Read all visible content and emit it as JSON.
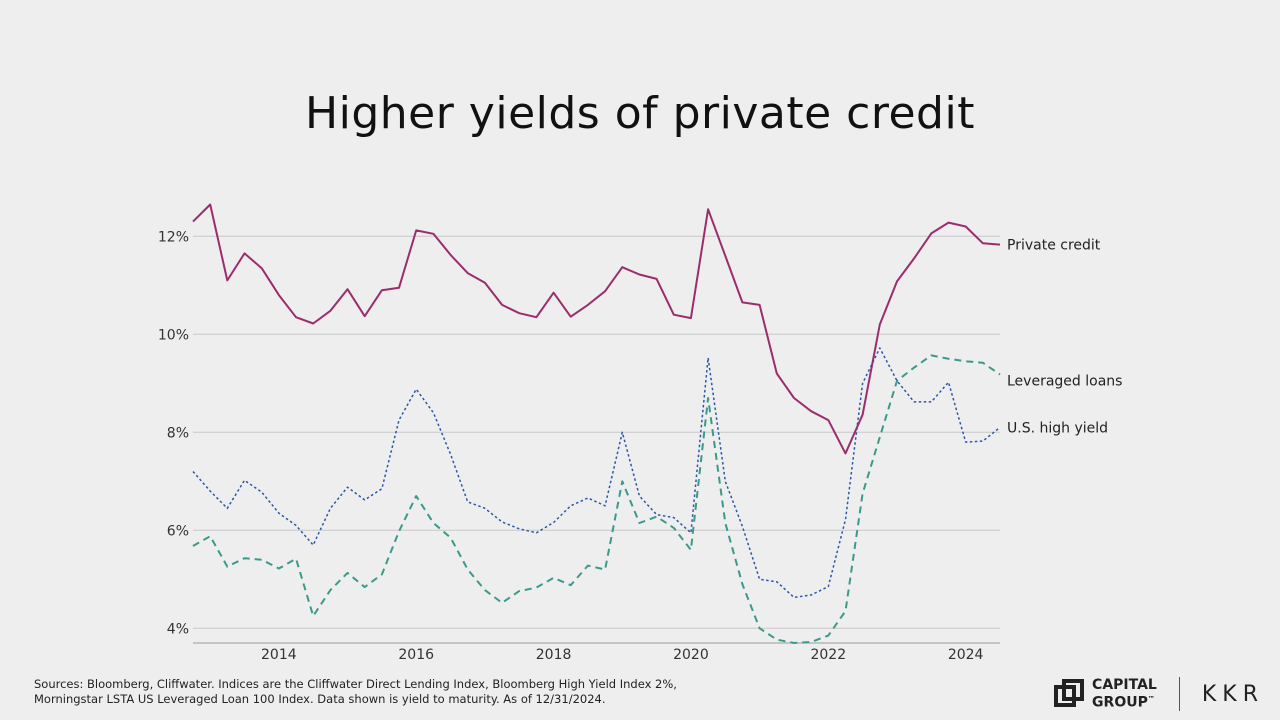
{
  "page": {
    "title": "Higher yields of private credit"
  },
  "chart_data": {
    "type": "line",
    "title": "Higher yields of private credit",
    "xlabel": "",
    "ylabel": "",
    "xlim": [
      2012.75,
      2024.5
    ],
    "ylim": [
      3.7,
      12.7
    ],
    "yticks": [
      4,
      6,
      8,
      10,
      12
    ],
    "ytick_labels": [
      "4%",
      "6%",
      "8%",
      "10%",
      "12%"
    ],
    "xticks": [
      2014,
      2016,
      2018,
      2020,
      2022,
      2024
    ],
    "xtick_labels": [
      "2014",
      "2016",
      "2018",
      "2020",
      "2022",
      "2024"
    ],
    "grid": "horizontal",
    "legend_position": "right (direct labels)",
    "series": [
      {
        "name": "Private credit",
        "color": "#9b2c6e",
        "style": "solid",
        "points": [
          [
            2012.75,
            12.3
          ],
          [
            2013.0,
            12.65
          ],
          [
            2013.25,
            11.1
          ],
          [
            2013.5,
            11.65
          ],
          [
            2013.75,
            11.35
          ],
          [
            2014.0,
            10.8
          ],
          [
            2014.25,
            10.35
          ],
          [
            2014.5,
            10.22
          ],
          [
            2014.75,
            10.48
          ],
          [
            2015.0,
            10.92
          ],
          [
            2015.25,
            10.37
          ],
          [
            2015.5,
            10.9
          ],
          [
            2015.75,
            10.95
          ],
          [
            2016.0,
            12.12
          ],
          [
            2016.25,
            12.05
          ],
          [
            2016.5,
            11.62
          ],
          [
            2016.75,
            11.25
          ],
          [
            2017.0,
            11.05
          ],
          [
            2017.25,
            10.6
          ],
          [
            2017.5,
            10.43
          ],
          [
            2017.75,
            10.35
          ],
          [
            2018.0,
            10.85
          ],
          [
            2018.25,
            10.36
          ],
          [
            2018.5,
            10.6
          ],
          [
            2018.75,
            10.88
          ],
          [
            2019.0,
            11.37
          ],
          [
            2019.25,
            11.22
          ],
          [
            2019.5,
            11.13
          ],
          [
            2019.75,
            10.4
          ],
          [
            2020.0,
            10.33
          ],
          [
            2020.25,
            12.55
          ],
          [
            2020.5,
            11.6
          ],
          [
            2020.75,
            10.65
          ],
          [
            2021.0,
            10.6
          ],
          [
            2021.25,
            9.2
          ],
          [
            2021.5,
            8.7
          ],
          [
            2021.75,
            8.43
          ],
          [
            2022.0,
            8.25
          ],
          [
            2022.25,
            7.57
          ],
          [
            2022.5,
            8.36
          ],
          [
            2022.75,
            10.2
          ],
          [
            2023.0,
            11.08
          ],
          [
            2023.25,
            11.55
          ],
          [
            2023.5,
            12.06
          ],
          [
            2023.75,
            12.28
          ],
          [
            2024.0,
            12.2
          ],
          [
            2024.25,
            11.86
          ],
          [
            2024.5,
            11.83
          ]
        ]
      },
      {
        "name": "Leveraged loans",
        "color": "#3a9a8a",
        "style": "dashed",
        "points": [
          [
            2012.75,
            5.68
          ],
          [
            2013.0,
            5.88
          ],
          [
            2013.25,
            5.26
          ],
          [
            2013.5,
            5.43
          ],
          [
            2013.75,
            5.4
          ],
          [
            2014.0,
            5.22
          ],
          [
            2014.25,
            5.42
          ],
          [
            2014.5,
            4.25
          ],
          [
            2014.75,
            4.78
          ],
          [
            2015.0,
            5.13
          ],
          [
            2015.25,
            4.84
          ],
          [
            2015.5,
            5.1
          ],
          [
            2015.75,
            5.98
          ],
          [
            2016.0,
            6.7
          ],
          [
            2016.25,
            6.15
          ],
          [
            2016.5,
            5.85
          ],
          [
            2016.75,
            5.2
          ],
          [
            2017.0,
            4.78
          ],
          [
            2017.25,
            4.52
          ],
          [
            2017.5,
            4.76
          ],
          [
            2017.75,
            4.83
          ],
          [
            2018.0,
            5.03
          ],
          [
            2018.25,
            4.88
          ],
          [
            2018.5,
            5.28
          ],
          [
            2018.75,
            5.2
          ],
          [
            2019.0,
            7.0
          ],
          [
            2019.25,
            6.15
          ],
          [
            2019.5,
            6.28
          ],
          [
            2019.75,
            6.05
          ],
          [
            2020.0,
            5.6
          ],
          [
            2020.25,
            8.7
          ],
          [
            2020.5,
            6.15
          ],
          [
            2020.75,
            4.9
          ],
          [
            2021.0,
            4.0
          ],
          [
            2021.25,
            3.77
          ],
          [
            2021.5,
            3.7
          ],
          [
            2021.75,
            3.72
          ],
          [
            2022.0,
            3.85
          ],
          [
            2022.25,
            4.35
          ],
          [
            2022.5,
            6.75
          ],
          [
            2022.75,
            7.9
          ],
          [
            2023.0,
            9.05
          ],
          [
            2023.25,
            9.32
          ],
          [
            2023.5,
            9.57
          ],
          [
            2023.75,
            9.5
          ],
          [
            2024.0,
            9.45
          ],
          [
            2024.25,
            9.42
          ],
          [
            2024.5,
            9.18
          ]
        ]
      },
      {
        "name": "U.S. high yield",
        "color": "#2a57a8",
        "style": "dotted",
        "points": [
          [
            2012.75,
            7.2
          ],
          [
            2013.0,
            6.8
          ],
          [
            2013.25,
            6.45
          ],
          [
            2013.5,
            7.02
          ],
          [
            2013.75,
            6.78
          ],
          [
            2014.0,
            6.35
          ],
          [
            2014.25,
            6.1
          ],
          [
            2014.5,
            5.7
          ],
          [
            2014.75,
            6.45
          ],
          [
            2015.0,
            6.88
          ],
          [
            2015.25,
            6.62
          ],
          [
            2015.5,
            6.85
          ],
          [
            2015.75,
            8.25
          ],
          [
            2016.0,
            8.88
          ],
          [
            2016.25,
            8.4
          ],
          [
            2016.5,
            7.55
          ],
          [
            2016.75,
            6.58
          ],
          [
            2017.0,
            6.45
          ],
          [
            2017.25,
            6.17
          ],
          [
            2017.5,
            6.03
          ],
          [
            2017.75,
            5.95
          ],
          [
            2018.0,
            6.16
          ],
          [
            2018.25,
            6.5
          ],
          [
            2018.5,
            6.66
          ],
          [
            2018.75,
            6.5
          ],
          [
            2019.0,
            8.0
          ],
          [
            2019.25,
            6.7
          ],
          [
            2019.5,
            6.32
          ],
          [
            2019.75,
            6.26
          ],
          [
            2020.0,
            5.95
          ],
          [
            2020.25,
            9.52
          ],
          [
            2020.5,
            7.0
          ],
          [
            2020.75,
            6.08
          ],
          [
            2021.0,
            5.0
          ],
          [
            2021.25,
            4.95
          ],
          [
            2021.5,
            4.63
          ],
          [
            2021.75,
            4.68
          ],
          [
            2022.0,
            4.85
          ],
          [
            2022.25,
            6.22
          ],
          [
            2022.5,
            9.0
          ],
          [
            2022.75,
            9.72
          ],
          [
            2023.0,
            9.05
          ],
          [
            2023.25,
            8.62
          ],
          [
            2023.5,
            8.62
          ],
          [
            2023.75,
            9.02
          ],
          [
            2024.0,
            7.8
          ],
          [
            2024.25,
            7.82
          ],
          [
            2024.5,
            8.1
          ]
        ]
      }
    ]
  },
  "footer": {
    "sources_line1": "Sources: Bloomberg, Cliffwater. Indices are the Cliffwater Direct Lending Index, Bloomberg High Yield Index 2%,",
    "sources_line2": "Morningstar LSTA US Leveraged Loan 100 Index. Data shown is yield to maturity. As of 12/31/2024.",
    "logo_capital": "CAPITAL",
    "logo_group": "GROUP",
    "logo_tm": "™",
    "logo_kkr": "KKR"
  }
}
